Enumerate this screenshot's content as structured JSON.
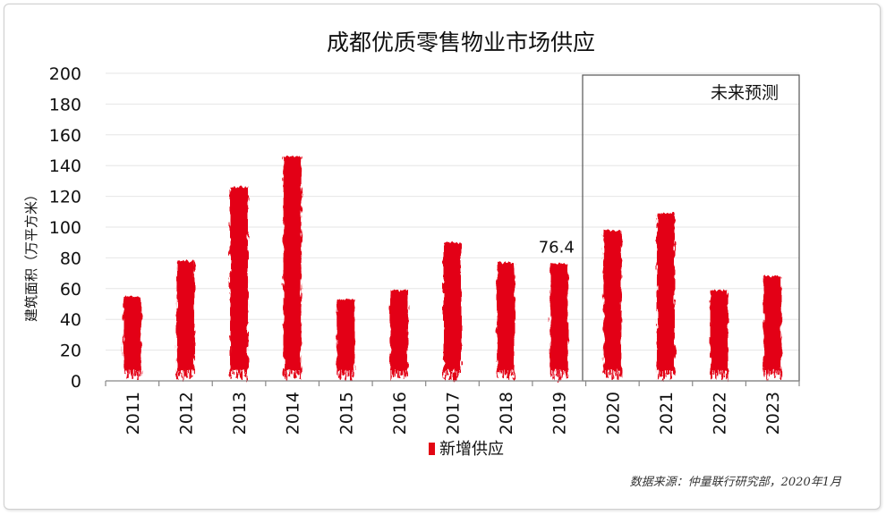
{
  "chart_data": {
    "type": "bar",
    "title": "成都优质零售物业市场供应",
    "ylabel": "建筑面积（万平方米）",
    "xlabel": "",
    "ylim": [
      0,
      200
    ],
    "yticks": [
      0,
      20,
      40,
      60,
      80,
      100,
      120,
      140,
      160,
      180,
      200
    ],
    "categories": [
      "2011",
      "2012",
      "2013",
      "2014",
      "2015",
      "2016",
      "2017",
      "2018",
      "2019",
      "2020",
      "2021",
      "2022",
      "2023"
    ],
    "series": [
      {
        "name": "新增供应",
        "values": [
          55,
          78,
          126,
          146,
          53,
          59,
          90,
          77,
          76.4,
          98,
          109,
          59,
          68
        ]
      }
    ],
    "data_labels": [
      {
        "category": "2019",
        "text": "76.4"
      }
    ],
    "forecast_region": {
      "label": "未来预测",
      "from": "2020",
      "to": "2023"
    },
    "grid": true,
    "legend": "bottom-center"
  },
  "colors": {
    "bar": "#e30613",
    "grid": "#e6e6e6",
    "axis": "#888888",
    "forecast_box": "#555555"
  },
  "source_note": "数据来源：仲量联行研究部，2020年1月"
}
